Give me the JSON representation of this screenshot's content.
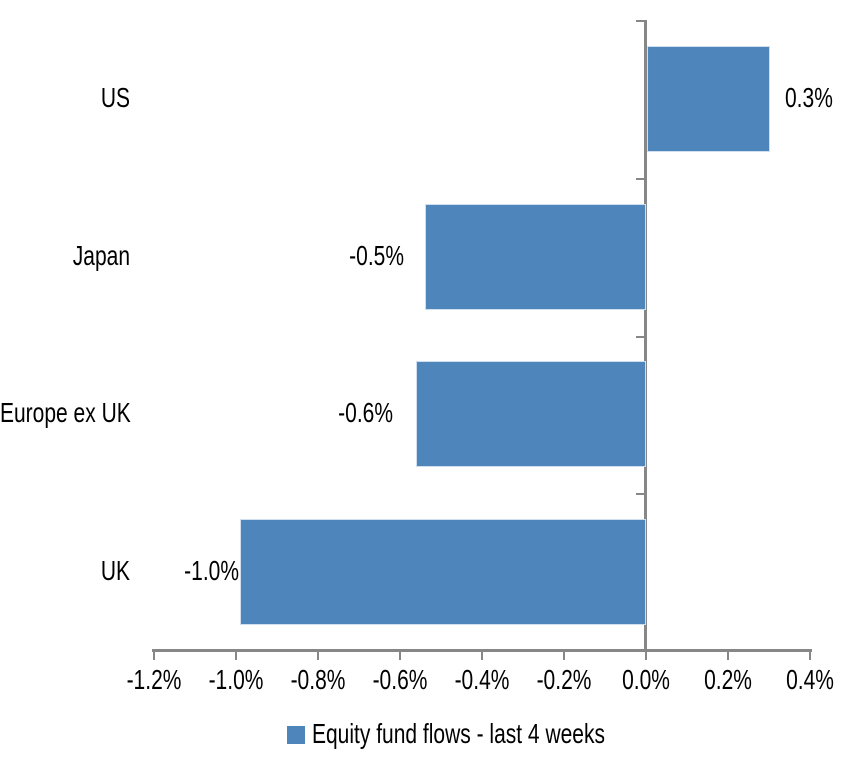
{
  "chart_data": {
    "type": "bar",
    "orientation": "horizontal",
    "title": "",
    "xlabel": "",
    "ylabel": "",
    "categories": [
      "US",
      "Japan",
      "Europe ex UK",
      "UK"
    ],
    "series": [
      {
        "name": "Equity fund flows - last 4 weeks",
        "values": [
          0.3,
          -0.54,
          -0.56,
          -0.99
        ],
        "data_labels": [
          "0.3%",
          "-0.5%",
          "-0.6%",
          "-1.0%"
        ]
      }
    ],
    "x_tick_labels": [
      "-1.2%",
      "-1.0%",
      "-0.8%",
      "-0.6%",
      "-0.4%",
      "-0.2%",
      "0.0%",
      "0.2%",
      "0.4%"
    ],
    "x_tick_values": [
      -1.2,
      -1.0,
      -0.8,
      -0.6,
      -0.4,
      -0.2,
      0.0,
      0.2,
      0.4
    ],
    "xlim": [
      -1.2,
      0.4
    ],
    "grid": false,
    "legend_position": "bottom",
    "bar_color": "#4E86BC",
    "bar_border_color": "#CFDFEF",
    "axis_color": "#878787",
    "text_color": "#000000",
    "background_color": "#FFFFFF"
  },
  "legend": {
    "label": "Equity fund flows - last 4 weeks",
    "swatch_icon": "blue-square-icon"
  }
}
